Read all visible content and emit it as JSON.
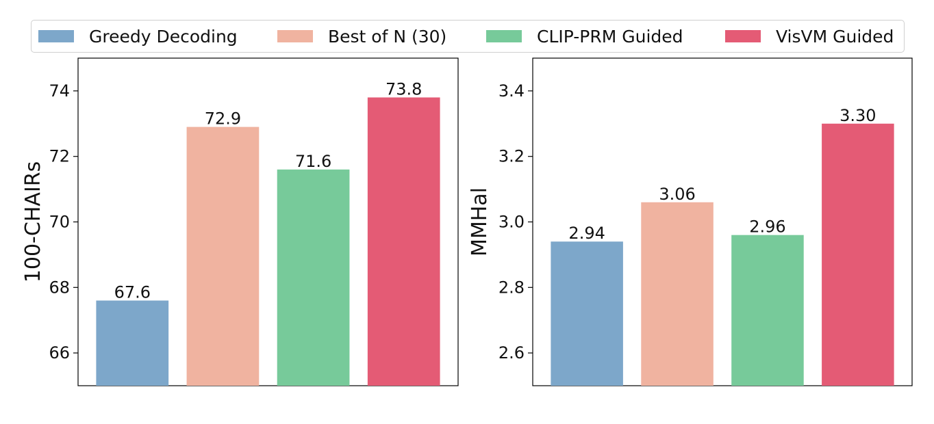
{
  "legend": [
    {
      "label": "Greedy Decoding",
      "color": "#7da7ca"
    },
    {
      "label": "Best of N (30)",
      "color": "#f0b3a0"
    },
    {
      "label": "CLIP-PRM Guided",
      "color": "#77ca9a"
    },
    {
      "label": "VisVM Guided",
      "color": "#e45b75"
    }
  ],
  "chart_data": [
    {
      "type": "bar",
      "categories": [
        "Greedy Decoding",
        "Best of N (30)",
        "CLIP-PRM Guided",
        "VisVM Guided"
      ],
      "values": [
        67.6,
        72.9,
        71.6,
        73.8
      ],
      "data_labels": [
        "67.6",
        "72.9",
        "71.6",
        "73.8"
      ],
      "colors": [
        "#7da7ca",
        "#f0b3a0",
        "#77ca9a",
        "#e45b75"
      ],
      "ylabel": "100-CHAIRs",
      "ylim": [
        65,
        75
      ],
      "yticks": [
        66,
        68,
        70,
        72,
        74
      ],
      "ytick_labels": [
        "66",
        "68",
        "70",
        "72",
        "74"
      ]
    },
    {
      "type": "bar",
      "categories": [
        "Greedy Decoding",
        "Best of N (30)",
        "CLIP-PRM Guided",
        "VisVM Guided"
      ],
      "values": [
        2.94,
        3.06,
        2.96,
        3.3
      ],
      "data_labels": [
        "2.94",
        "3.06",
        "2.96",
        "3.30"
      ],
      "colors": [
        "#7da7ca",
        "#f0b3a0",
        "#77ca9a",
        "#e45b75"
      ],
      "ylabel": "MMHal",
      "ylim": [
        2.5,
        3.5
      ],
      "yticks": [
        2.6,
        2.8,
        3.0,
        3.2,
        3.4
      ],
      "ytick_labels": [
        "2.6",
        "2.8",
        "3.0",
        "3.2",
        "3.4"
      ]
    }
  ]
}
